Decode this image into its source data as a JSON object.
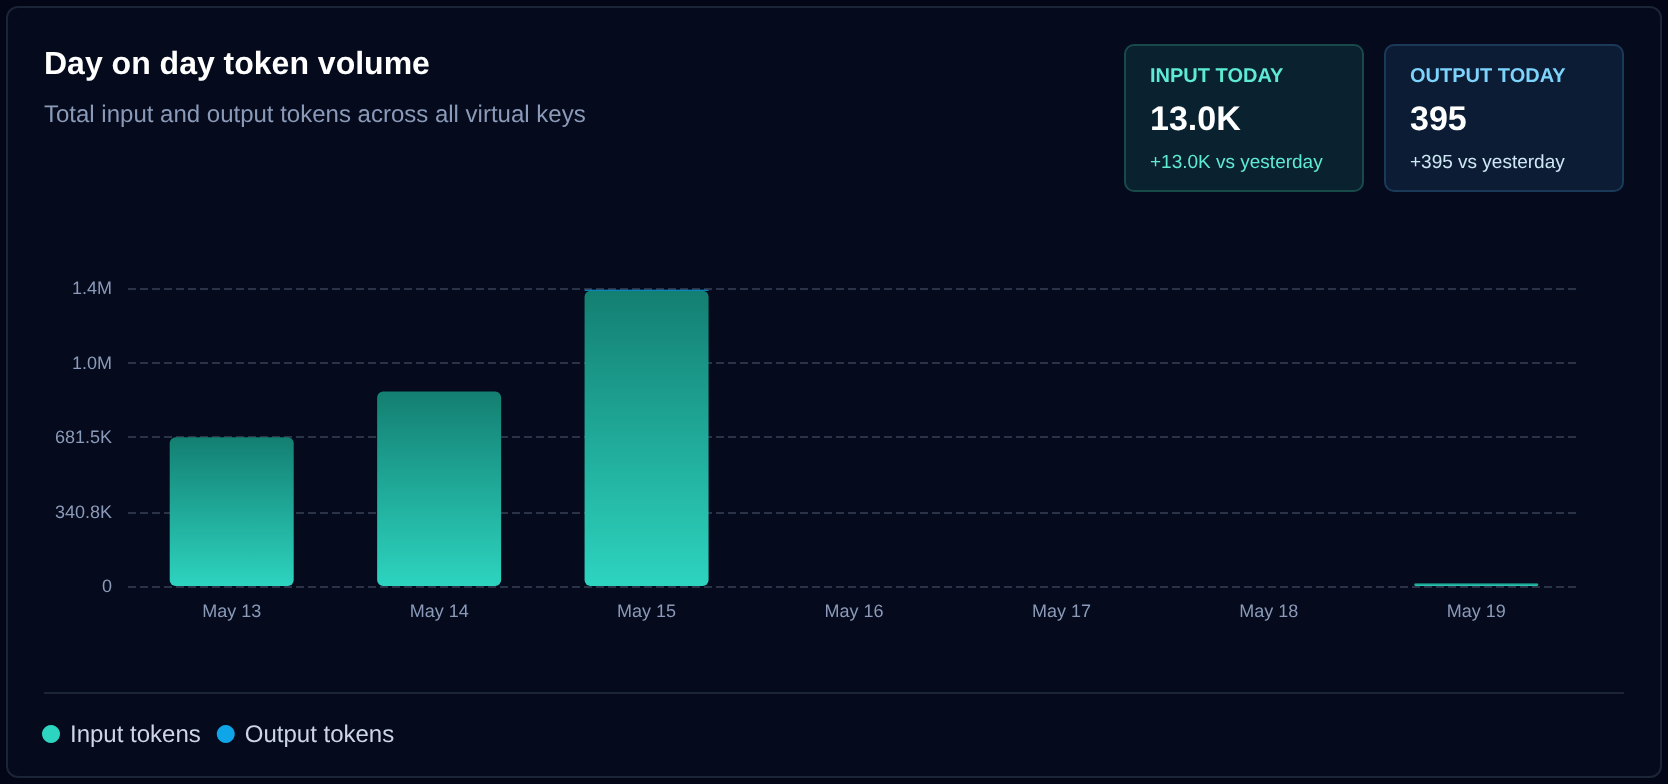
{
  "chart_data": {
    "type": "bar",
    "title": "Day on day token volume",
    "subtitle": "Total input and output tokens across all virtual keys",
    "categories": [
      "May 13",
      "May 14",
      "May 15",
      "May 16",
      "May 17",
      "May 18",
      "May 19"
    ],
    "series": [
      {
        "name": "Input tokens",
        "color": "#2dd4bf",
        "values": [
          680000,
          890000,
          1350000,
          0,
          0,
          0,
          13000
        ]
      },
      {
        "name": "Output tokens",
        "color": "#0ea5e9",
        "values": [
          0,
          0,
          5000,
          0,
          0,
          0,
          null
        ]
      }
    ],
    "stacked": true,
    "ylim": [
      0,
      1363000
    ],
    "yticks": [
      0,
      {
        "value": 340750,
        "label": "340.8K"
      },
      {
        "value": 681500,
        "label": "681.5K"
      },
      {
        "value": 1022250,
        "label": "1.0M"
      },
      {
        "value": 1363000,
        "label": "1.4M"
      }
    ],
    "grid": "y",
    "legend": "bottom left",
    "annotations": [
      "INPUT TODAY",
      "13.0K",
      "+13.0K vs yesterday",
      "OUTPUT TODAY",
      "395",
      "+395 vs yesterday"
    ]
  }
}
